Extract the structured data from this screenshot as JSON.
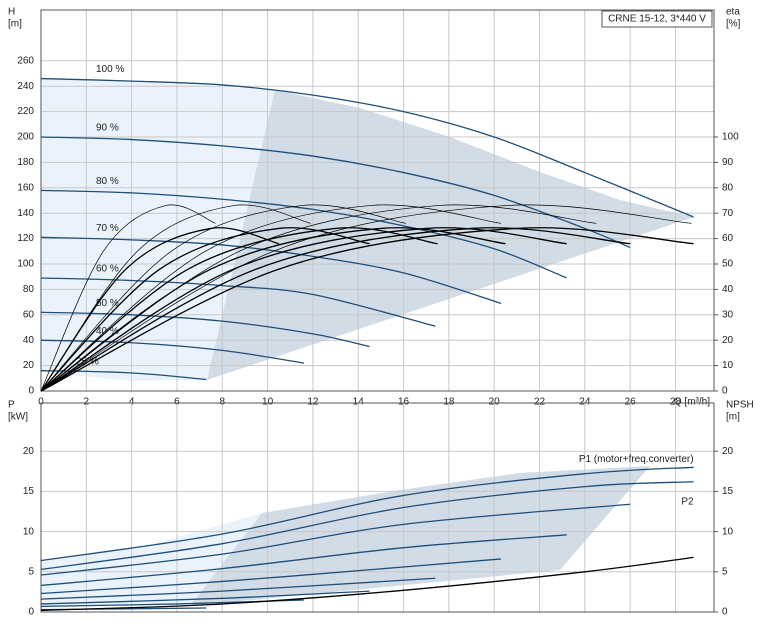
{
  "chart_data": [
    {
      "type": "line",
      "y_label": "H",
      "y_unit": "[m]",
      "y2_label": "eta",
      "y2_unit": "[%]",
      "x_label": "Q [m³/h]",
      "annotation": "CRNE 15-12, 3*440 V",
      "xlim": [
        0,
        29.7
      ],
      "xticks": [
        0,
        2,
        4,
        6,
        8,
        10,
        12,
        14,
        16,
        18,
        20,
        22,
        24,
        26,
        28
      ],
      "ylim": [
        0,
        300
      ],
      "yticks": [
        0,
        20,
        40,
        60,
        80,
        100,
        120,
        140,
        160,
        180,
        200,
        220,
        240,
        260
      ],
      "y2lim": [
        0,
        150
      ],
      "y2ticks": [
        0,
        10,
        20,
        30,
        40,
        50,
        60,
        70,
        80,
        90,
        100
      ],
      "grid": true,
      "series": [
        {
          "name": "100 %",
          "color": "#1f4e79",
          "x": [
            0,
            4,
            8,
            12,
            16,
            20,
            24,
            28.8
          ],
          "values": [
            246,
            244,
            241,
            233,
            220,
            200,
            172,
            137
          ]
        },
        {
          "name": "90 %",
          "color": "#1f4e79",
          "x": [
            0,
            4,
            8,
            12,
            16,
            20,
            24,
            26
          ],
          "values": [
            200,
            198,
            193,
            185,
            172,
            154,
            128,
            113
          ]
        },
        {
          "name": "80 %",
          "color": "#1f4e79",
          "x": [
            0,
            4,
            8,
            12,
            16,
            20,
            23.2
          ],
          "values": [
            158,
            156,
            151,
            143,
            130,
            112,
            89
          ]
        },
        {
          "name": "70 %",
          "color": "#1f4e79",
          "x": [
            0,
            4,
            8,
            12,
            16,
            20.3
          ],
          "values": [
            121,
            119,
            115,
            106,
            93,
            69
          ]
        },
        {
          "name": "60 %",
          "color": "#1f4e79",
          "x": [
            0,
            4,
            8,
            12,
            17.4
          ],
          "values": [
            89,
            87,
            83,
            76,
            51
          ]
        },
        {
          "name": "50 %",
          "color": "#1f4e79",
          "x": [
            0,
            4,
            8,
            12,
            14.5
          ],
          "values": [
            62,
            60,
            55,
            45,
            35
          ]
        },
        {
          "name": "40 %",
          "color": "#1f4e79",
          "x": [
            0,
            4,
            8,
            11.6
          ],
          "values": [
            40,
            38,
            32,
            22
          ]
        },
        {
          "name": "25 %",
          "color": "#1f4e79",
          "x": [
            0,
            3,
            5,
            7.3
          ],
          "values": [
            16,
            15,
            13,
            9
          ]
        },
        {
          "axis": "y2",
          "color": "#000000",
          "x": [
            0,
            2.75,
            5.5,
            7.7
          ],
          "values": [
            0,
            55,
            73,
            66
          ]
        },
        {
          "axis": "y2",
          "color": "#000000",
          "x": [
            0,
            4.25,
            8.5,
            11.9
          ],
          "values": [
            0,
            55,
            73,
            66
          ]
        },
        {
          "axis": "y2",
          "color": "#000000",
          "x": [
            0,
            5.75,
            11.5,
            16.1
          ],
          "values": [
            0,
            55,
            73,
            66
          ]
        },
        {
          "axis": "y2",
          "color": "#000000",
          "x": [
            0,
            7.25,
            14.5,
            20.3
          ],
          "values": [
            0,
            55,
            73,
            66
          ]
        },
        {
          "axis": "y2",
          "color": "#000000",
          "x": [
            0,
            8.75,
            17.5,
            24.5
          ],
          "values": [
            0,
            55,
            73,
            66
          ]
        },
        {
          "axis": "y2",
          "color": "#000000",
          "x": [
            0,
            10.25,
            20.5,
            28.7
          ],
          "values": [
            0,
            55,
            73,
            66
          ]
        },
        {
          "axis": "y2",
          "color": "#000000",
          "x": [
            0,
            3.75,
            7.5,
            10.5
          ],
          "values": [
            0,
            48,
            64,
            58
          ]
        },
        {
          "axis": "y2",
          "color": "#000000",
          "x": [
            0,
            5.25,
            10.5,
            14.5
          ],
          "values": [
            0,
            48,
            64,
            58
          ]
        },
        {
          "axis": "y2",
          "color": "#000000",
          "x": [
            0,
            6.5,
            13,
            17.5
          ],
          "values": [
            0,
            48,
            64,
            58
          ]
        },
        {
          "axis": "y2",
          "color": "#000000",
          "x": [
            0,
            7.5,
            15,
            20.5
          ],
          "values": [
            0,
            48,
            64,
            58
          ]
        },
        {
          "axis": "y2",
          "color": "#000000",
          "x": [
            0,
            8.5,
            17,
            23.2
          ],
          "values": [
            0,
            48,
            64,
            58
          ]
        },
        {
          "axis": "y2",
          "color": "#000000",
          "x": [
            0,
            9.5,
            19,
            26
          ],
          "values": [
            0,
            48,
            64,
            58
          ]
        },
        {
          "axis": "y2",
          "color": "#000000",
          "x": [
            0,
            10.5,
            21,
            28.8
          ],
          "values": [
            0,
            48,
            64,
            58
          ]
        }
      ]
    },
    {
      "type": "line",
      "y_label": "P",
      "y_unit": "[kW]",
      "y2_label": "NPSH",
      "y2_unit": "[m]",
      "xlim": [
        0,
        29.7
      ],
      "xticks": [
        0,
        2,
        4,
        6,
        8,
        10,
        12,
        14,
        16,
        18,
        20,
        22,
        24,
        26,
        28
      ],
      "ylim": [
        0,
        26
      ],
      "yticks": [
        0,
        5,
        10,
        15,
        20
      ],
      "y2lim": [
        0,
        26
      ],
      "y2ticks": [
        0,
        5,
        10,
        15,
        20
      ],
      "grid": true,
      "series": [
        {
          "name": "P1 (motor+freq.converter)",
          "color": "#1f4e79",
          "x": [
            0,
            8,
            16,
            24,
            28.8
          ],
          "values": [
            6.4,
            9.7,
            14.5,
            17.2,
            18
          ]
        },
        {
          "name": "P2",
          "color": "#1f4e79",
          "x": [
            0,
            8,
            16,
            24,
            28.8
          ],
          "values": [
            5.3,
            8.5,
            13,
            15.6,
            16.2
          ]
        },
        {
          "color": "#1f4e79",
          "x": [
            0,
            8,
            16,
            26
          ],
          "values": [
            4.6,
            7.2,
            10.9,
            13.4
          ]
        },
        {
          "color": "#1f4e79",
          "x": [
            0,
            8,
            16,
            23.2
          ],
          "values": [
            3.3,
            5.4,
            8,
            9.6
          ]
        },
        {
          "color": "#1f4e79",
          "x": [
            0,
            8,
            16,
            20.3
          ],
          "values": [
            2.3,
            3.8,
            5.6,
            6.6
          ]
        },
        {
          "color": "#1f4e79",
          "x": [
            0,
            8,
            17.4
          ],
          "values": [
            1.6,
            2.6,
            4.2
          ]
        },
        {
          "color": "#1f4e79",
          "x": [
            0,
            8,
            14.5
          ],
          "values": [
            1,
            1.7,
            2.6
          ]
        },
        {
          "color": "#1f4e79",
          "x": [
            0,
            6,
            11.6
          ],
          "values": [
            0.7,
            1,
            1.5
          ]
        },
        {
          "color": "#1f4e79",
          "x": [
            0,
            4,
            7.3
          ],
          "values": [
            0.3,
            0.4,
            0.5
          ]
        },
        {
          "axis": "y2",
          "color": "#000000",
          "x": [
            0,
            8,
            16,
            24,
            28.8
          ],
          "values": [
            0.2,
            1,
            2.7,
            5,
            6.8
          ]
        }
      ]
    }
  ]
}
